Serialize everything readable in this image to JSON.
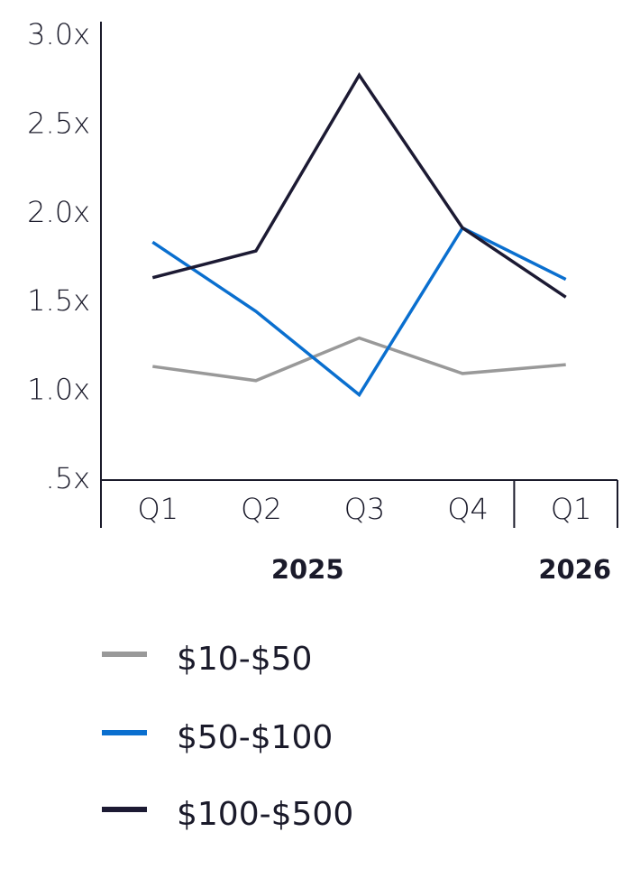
{
  "chart_data": {
    "type": "line",
    "categories": [
      "Q1",
      "Q2",
      "Q3",
      "Q4",
      "Q1"
    ],
    "x_groups": [
      {
        "label": "2025",
        "categories": [
          "Q1",
          "Q2",
          "Q3",
          "Q4"
        ]
      },
      {
        "label": "2026",
        "categories": [
          "Q1"
        ]
      }
    ],
    "series": [
      {
        "name": "$10-$50",
        "color": "#999999",
        "values": [
          1.14,
          1.06,
          1.3,
          1.1,
          1.15
        ]
      },
      {
        "name": "$50-$100",
        "color": "#0a6fcf",
        "values": [
          1.84,
          1.45,
          0.98,
          1.92,
          1.63
        ]
      },
      {
        "name": "$100-$500",
        "color": "#1c1a33",
        "values": [
          1.64,
          1.79,
          2.78,
          1.92,
          1.53
        ]
      }
    ],
    "ylim": [
      0.5,
      3.0
    ],
    "yticks": [
      {
        "value": 3.0,
        "label": "3.0x"
      },
      {
        "value": 2.5,
        "label": "2.5x"
      },
      {
        "value": 2.0,
        "label": "2.0x"
      },
      {
        "value": 1.5,
        "label": "1.5x"
      },
      {
        "value": 1.0,
        "label": "1.0x"
      },
      {
        "value": 0.5,
        "label": ".5x"
      }
    ],
    "grid": false,
    "legend": "bottom"
  }
}
